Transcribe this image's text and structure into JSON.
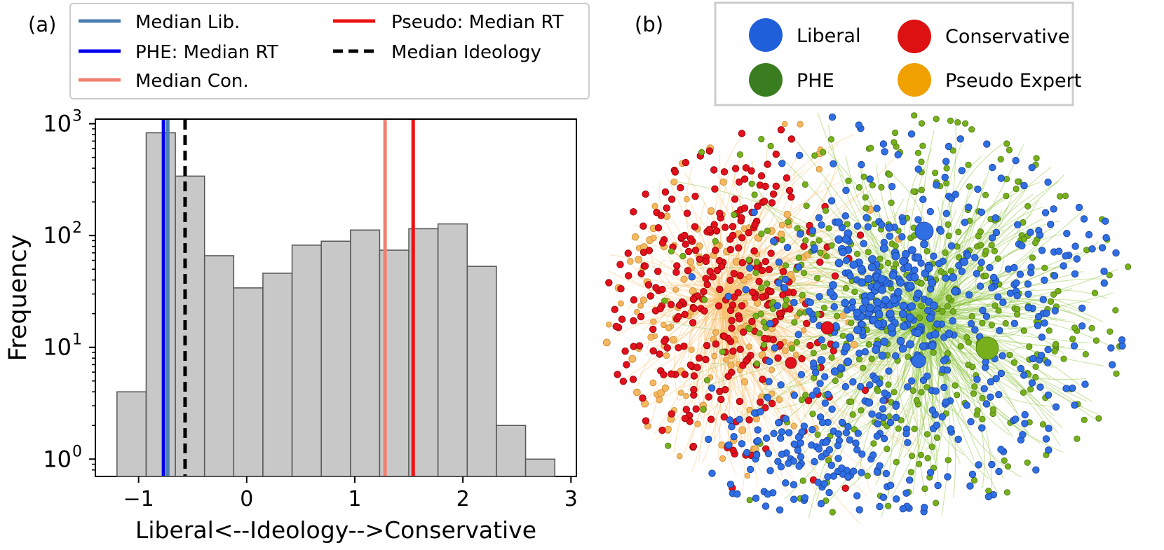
{
  "chart_data": [
    {
      "type": "bar",
      "panel_label": "(a)",
      "xlabel": "Liberal<--Ideology-->Conservative",
      "ylabel": "Frequency",
      "yscale": "log",
      "xlim": [
        -1.4,
        3.05
      ],
      "ylim": [
        0.7,
        1100
      ],
      "xticks": [
        {
          "value": -1,
          "label": "−1"
        },
        {
          "value": 0,
          "label": "0"
        },
        {
          "value": 1,
          "label": "1"
        },
        {
          "value": 2,
          "label": "2"
        },
        {
          "value": 3,
          "label": "3"
        }
      ],
      "yticks": [
        {
          "value": 1,
          "base": "10",
          "exp": "0"
        },
        {
          "value": 10,
          "base": "10",
          "exp": "1"
        },
        {
          "value": 100,
          "base": "10",
          "exp": "2"
        },
        {
          "value": 1000,
          "base": "10",
          "exp": "3"
        }
      ],
      "bins": [
        {
          "left": -1.2,
          "right": -0.93,
          "value": 4
        },
        {
          "left": -0.93,
          "right": -0.66,
          "value": 830
        },
        {
          "left": -0.66,
          "right": -0.39,
          "value": 340
        },
        {
          "left": -0.39,
          "right": -0.12,
          "value": 66
        },
        {
          "left": -0.12,
          "right": 0.15,
          "value": 34
        },
        {
          "left": 0.15,
          "right": 0.42,
          "value": 46
        },
        {
          "left": 0.42,
          "right": 0.69,
          "value": 82
        },
        {
          "left": 0.69,
          "right": 0.96,
          "value": 89
        },
        {
          "left": 0.96,
          "right": 1.23,
          "value": 112
        },
        {
          "left": 1.23,
          "right": 1.5,
          "value": 74
        },
        {
          "left": 1.5,
          "right": 1.77,
          "value": 115
        },
        {
          "left": 1.77,
          "right": 2.04,
          "value": 127
        },
        {
          "left": 2.04,
          "right": 2.31,
          "value": 53
        },
        {
          "left": 2.31,
          "right": 2.58,
          "value": 2
        },
        {
          "left": 2.58,
          "right": 2.85,
          "value": 1
        }
      ],
      "vlines": [
        {
          "key": "median-lib",
          "label": "Median Lib.",
          "x": -0.73,
          "color": "#4a7fb0",
          "dashed": false
        },
        {
          "key": "phe-median-rt",
          "label": "PHE: Median RT",
          "x": -0.77,
          "color": "#0000ee",
          "dashed": false
        },
        {
          "key": "median-con",
          "label": "Median Con.",
          "x": 1.28,
          "color": "#f08070",
          "dashed": false
        },
        {
          "key": "pseudo-median-rt",
          "label": "Pseudo: Median RT",
          "x": 1.54,
          "color": "#ee1111",
          "dashed": false
        },
        {
          "key": "median-ideology",
          "label": "Median Ideology",
          "x": -0.57,
          "color": "#000000",
          "dashed": true
        }
      ],
      "colors": {
        "bar_fill": "#c8c8c8",
        "bar_edge": "#555555"
      }
    },
    {
      "type": "network",
      "panel_label": "(b)",
      "legend": [
        {
          "key": "liberal",
          "label": "Liberal",
          "color": "#1f5fd9"
        },
        {
          "key": "conservative",
          "label": "Conservative",
          "color": "#dd1111"
        },
        {
          "key": "phe",
          "label": "PHE",
          "color": "#3a7d20"
        },
        {
          "key": "pseudo-expert",
          "label": "Pseudo Expert",
          "color": "#f0a000"
        }
      ],
      "colors": {
        "liberal_node": "#2f6fe3",
        "conservative_node": "#e3101e",
        "phe_node": "#77b01c",
        "pseudo_node": "#f5b860",
        "phe_edge": "#8cc43c",
        "pseudo_edge": "#f8c070"
      }
    }
  ]
}
